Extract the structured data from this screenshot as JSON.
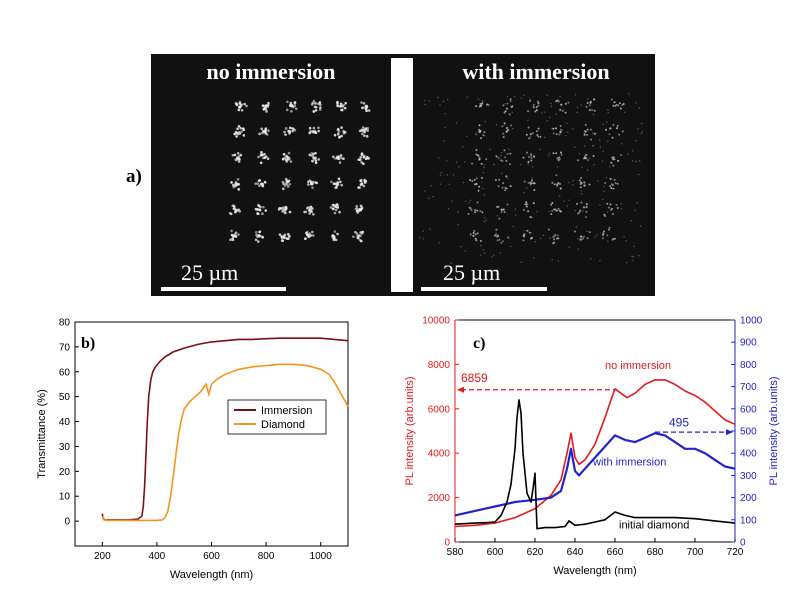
{
  "panel_a": {
    "label": "a)",
    "left_caption": "no immersion",
    "right_caption": "with immersion",
    "left_scale": "25 µm",
    "right_scale": "25 µm"
  },
  "chart_data": [
    {
      "type": "line",
      "panel_label": "b)",
      "xlabel": "Wavelength (nm)",
      "ylabel": "Transmittance (%)",
      "xlim": [
        100,
        1100
      ],
      "ylim": [
        -10,
        80
      ],
      "xticks": [
        200,
        400,
        600,
        800,
        1000
      ],
      "yticks": [
        0,
        10,
        20,
        30,
        40,
        50,
        60,
        70,
        80
      ],
      "legend_position": "center-right",
      "series": [
        {
          "name": "Immersion",
          "color": "#7a0f16",
          "x": [
            200,
            203,
            210,
            230,
            260,
            300,
            330,
            345,
            350,
            355,
            360,
            365,
            370,
            378,
            385,
            395,
            410,
            430,
            460,
            500,
            550,
            600,
            650,
            700,
            750,
            800,
            850,
            900,
            950,
            1000,
            1050,
            1100
          ],
          "y": [
            3,
            1,
            0.5,
            0.5,
            0.5,
            0.5,
            0.8,
            2,
            6,
            14,
            27,
            40,
            50,
            57,
            60,
            62,
            64,
            66,
            68,
            69.5,
            71,
            72,
            72.5,
            73,
            73,
            73.3,
            73.5,
            73.5,
            73.5,
            73.5,
            73,
            72.5
          ]
        },
        {
          "name": "Diamond",
          "color": "#f7941d",
          "x": [
            200,
            205,
            220,
            260,
            300,
            350,
            400,
            420,
            430,
            440,
            450,
            460,
            470,
            480,
            490,
            500,
            520,
            540,
            560,
            580,
            590,
            600,
            620,
            650,
            700,
            750,
            800,
            850,
            900,
            950,
            1000,
            1030,
            1050,
            1070,
            1090,
            1100
          ],
          "y": [
            2,
            0.5,
            0.3,
            0.3,
            0.3,
            0.3,
            0.3,
            0.5,
            1.5,
            4,
            10,
            18,
            27,
            35,
            41,
            45,
            48,
            50,
            52,
            55,
            51,
            55,
            57,
            59,
            61,
            62,
            62.5,
            63,
            63,
            62.5,
            61,
            59,
            56,
            52,
            48,
            46
          ]
        }
      ]
    },
    {
      "type": "line",
      "panel_label": "c)",
      "xlabel": "Wavelength (nm)",
      "ylabel_left": "PL intensity (arb.units)",
      "ylabel_right": "PL intensity (arb.units)",
      "xlim": [
        580,
        720
      ],
      "ylim_left": [
        0,
        10000
      ],
      "ylim_right": [
        0,
        1000
      ],
      "xticks": [
        580,
        600,
        620,
        640,
        660,
        680,
        700,
        720
      ],
      "yticks_left": [
        0,
        2000,
        4000,
        6000,
        8000,
        10000
      ],
      "yticks_right": [
        0,
        100,
        200,
        300,
        400,
        500,
        600,
        700,
        800,
        900,
        1000
      ],
      "axis_colors": {
        "left": "#e41a1c",
        "right": "#2323c8"
      },
      "annotations": [
        {
          "text": "no immersion",
          "color": "#e41a1c"
        },
        {
          "text": "with immersion",
          "color": "#2323c8"
        },
        {
          "text": "initial diamond",
          "color": "#000000"
        },
        {
          "text": "6859",
          "color": "#e41a1c"
        },
        {
          "text": "495",
          "color": "#2323c8"
        }
      ],
      "reference_lines": [
        {
          "axis": "left",
          "value": 6859,
          "from_x": 580,
          "to_x": 660,
          "color": "#e41a1c"
        },
        {
          "axis": "right",
          "value": 495,
          "from_x": 680,
          "to_x": 720,
          "color": "#2323c8"
        }
      ],
      "series": [
        {
          "label": "no immersion",
          "axis": "left",
          "color": "#e41a1c",
          "x": [
            580,
            590,
            600,
            610,
            620,
            628,
            633,
            636,
            638,
            640,
            642,
            645,
            650,
            655,
            658,
            660,
            663,
            666,
            670,
            675,
            680,
            685,
            690,
            695,
            700,
            705,
            710,
            715,
            720
          ],
          "y": [
            700,
            750,
            850,
            1100,
            1500,
            2100,
            2800,
            4000,
            4900,
            3800,
            3500,
            3700,
            4400,
            5600,
            6400,
            6900,
            6700,
            6500,
            6700,
            7100,
            7300,
            7300,
            7100,
            6800,
            6600,
            6300,
            5900,
            5500,
            5300
          ]
        },
        {
          "label": "with immersion",
          "axis": "right",
          "color": "#2323c8",
          "x": [
            580,
            590,
            600,
            610,
            620,
            628,
            633,
            636,
            638,
            640,
            642,
            645,
            650,
            655,
            660,
            665,
            670,
            675,
            680,
            685,
            690,
            695,
            700,
            705,
            710,
            715,
            720
          ],
          "y": [
            120,
            140,
            160,
            180,
            190,
            200,
            230,
            330,
            420,
            320,
            300,
            330,
            380,
            430,
            480,
            460,
            450,
            470,
            490,
            480,
            450,
            420,
            420,
            400,
            370,
            340,
            330
          ]
        },
        {
          "label": "initial diamond",
          "axis": "left",
          "color": "#000000",
          "x": [
            580,
            590,
            595,
            600,
            603,
            606,
            608,
            610,
            611,
            612,
            613,
            614,
            616,
            618,
            619,
            620,
            621,
            625,
            630,
            635,
            637,
            640,
            645,
            650,
            655,
            660,
            665,
            670,
            680,
            690,
            700,
            710,
            720
          ],
          "y": [
            800,
            850,
            870,
            900,
            1200,
            1800,
            2600,
            4200,
            5600,
            6400,
            5800,
            4000,
            2200,
            1800,
            2400,
            3100,
            600,
            650,
            650,
            700,
            950,
            750,
            800,
            900,
            1000,
            1350,
            1200,
            1100,
            1100,
            1100,
            1050,
            950,
            850
          ]
        }
      ]
    }
  ]
}
